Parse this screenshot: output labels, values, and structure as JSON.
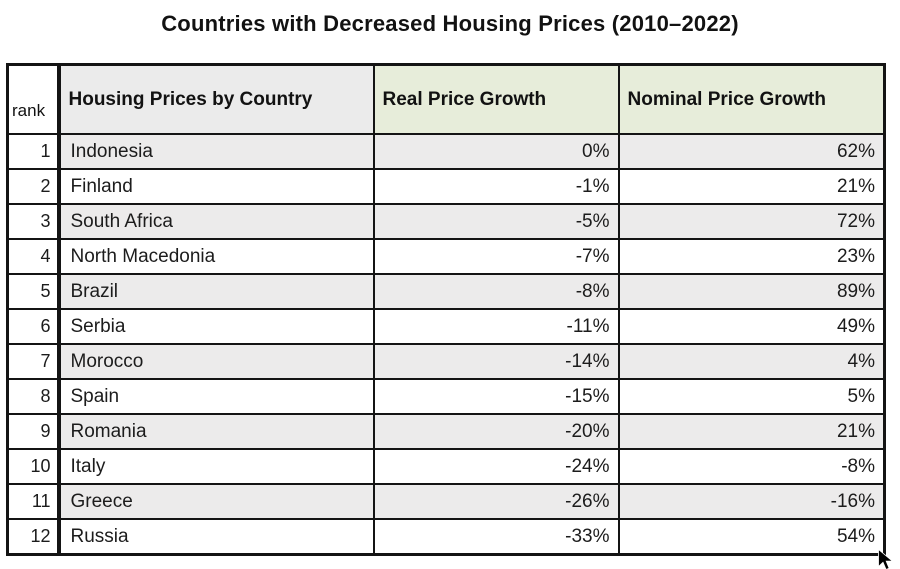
{
  "title": "Countries with Decreased Housing Prices (2010–2022)",
  "table": {
    "columns": [
      "rank",
      "Housing Prices by Country",
      "Real Price Growth",
      "Nominal Price Growth"
    ],
    "rows": [
      {
        "rank": "1",
        "country": "Indonesia",
        "real": "0%",
        "nominal": "62%"
      },
      {
        "rank": "2",
        "country": "Finland",
        "real": "-1%",
        "nominal": "21%"
      },
      {
        "rank": "3",
        "country": "South Africa",
        "real": "-5%",
        "nominal": "72%"
      },
      {
        "rank": "4",
        "country": "North Macedonia",
        "real": "-7%",
        "nominal": "23%"
      },
      {
        "rank": "5",
        "country": "Brazil",
        "real": "-8%",
        "nominal": "89%"
      },
      {
        "rank": "6",
        "country": "Serbia",
        "real": "-11%",
        "nominal": "49%"
      },
      {
        "rank": "7",
        "country": "Morocco",
        "real": "-14%",
        "nominal": "4%"
      },
      {
        "rank": "8",
        "country": "Spain",
        "real": "-15%",
        "nominal": "5%"
      },
      {
        "rank": "9",
        "country": "Romania",
        "real": "-20%",
        "nominal": "21%"
      },
      {
        "rank": "10",
        "country": "Italy",
        "real": "-24%",
        "nominal": "-8%"
      },
      {
        "rank": "11",
        "country": "Greece",
        "real": "-26%",
        "nominal": "-16%"
      },
      {
        "rank": "12",
        "country": "Russia",
        "real": "-33%",
        "nominal": "54%"
      }
    ]
  },
  "chart_data": {
    "type": "table",
    "title": "Countries with Decreased Housing Prices (2010–2022)",
    "columns": [
      "rank",
      "Housing Prices by Country",
      "Real Price Growth",
      "Nominal Price Growth"
    ],
    "categories": [
      "Indonesia",
      "Finland",
      "South Africa",
      "North Macedonia",
      "Brazil",
      "Serbia",
      "Morocco",
      "Spain",
      "Romania",
      "Italy",
      "Greece",
      "Russia"
    ],
    "series": [
      {
        "name": "Real Price Growth (%)",
        "values": [
          0,
          -1,
          -5,
          -7,
          -8,
          -11,
          -14,
          -15,
          -20,
          -24,
          -26,
          -33
        ]
      },
      {
        "name": "Nominal Price Growth (%)",
        "values": [
          62,
          21,
          72,
          23,
          89,
          49,
          4,
          5,
          21,
          -8,
          -16,
          54
        ]
      }
    ],
    "layout_hints": {
      "striped_rows": true,
      "stripe_starts_on_first_data_row": true,
      "value_alignment": "right",
      "grid": "on"
    }
  },
  "colors": {
    "header_green": "#e7edda",
    "header_gray": "#ebebeb",
    "stripe_gray": "#ecebeb",
    "row_white": "#ffffff",
    "border_black": "#141414",
    "text": "#121212"
  },
  "cursor_icon": "arrow-pointer"
}
